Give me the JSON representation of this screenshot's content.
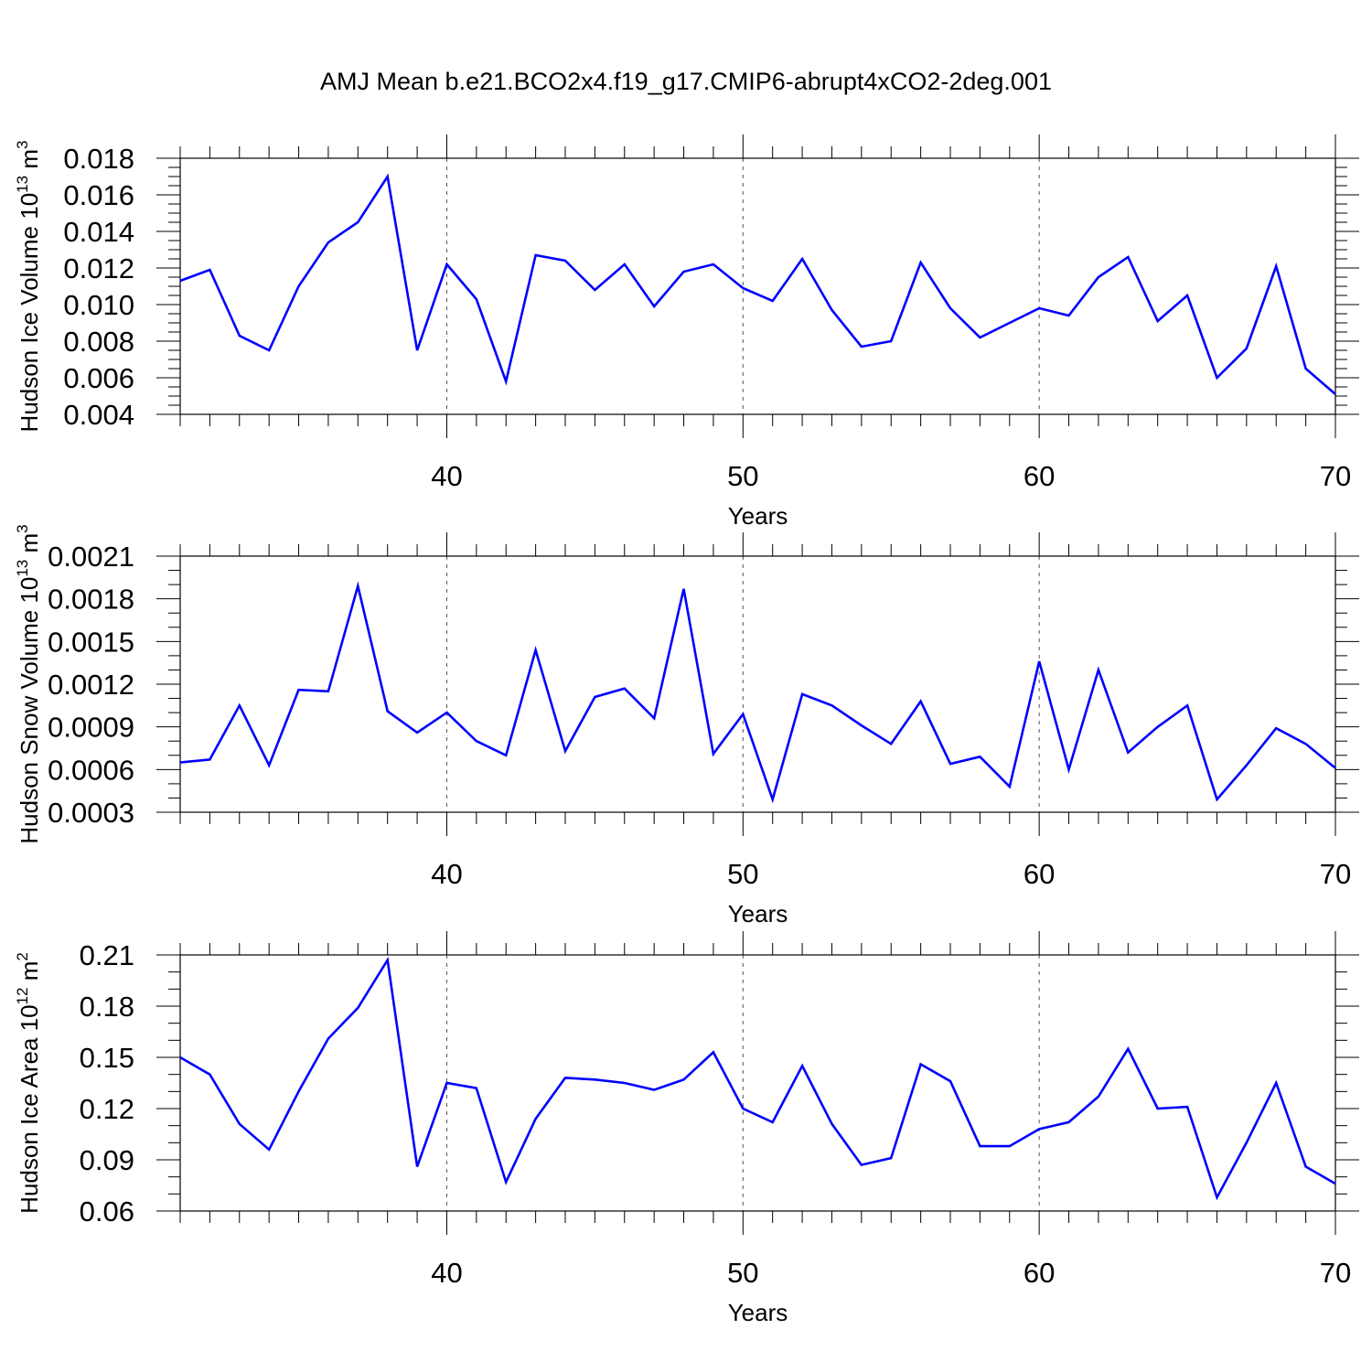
{
  "title": "AMJ Mean b.e21.BCO2x4.f19_g17.CMIP6-abrupt4xCO2-2deg.001",
  "line_color": "#0000ff",
  "chart_data": [
    {
      "type": "line",
      "xlabel": "Years",
      "ylabel_text": "Hudson Ice Volume 10",
      "ylabel_exp": "13",
      "ylabel_unit": " m",
      "ylabel_unit_exp": "3",
      "xlim": [
        31,
        70
      ],
      "ylim": [
        0.004,
        0.018
      ],
      "xticks": [
        40,
        50,
        60,
        70
      ],
      "yticks": [
        0.004,
        0.006,
        0.008,
        0.01,
        0.012,
        0.014,
        0.016,
        0.018
      ],
      "ytick_labels": [
        "0.004",
        "0.006",
        "0.008",
        "0.010",
        "0.012",
        "0.014",
        "0.016",
        "0.018"
      ],
      "ytick_minor_step": 0.0005,
      "vgrid": [
        40,
        50,
        60
      ],
      "x": [
        31,
        32,
        33,
        34,
        35,
        36,
        37,
        38,
        39,
        40,
        41,
        42,
        43,
        44,
        45,
        46,
        47,
        48,
        49,
        50,
        51,
        52,
        53,
        54,
        55,
        56,
        57,
        58,
        59,
        60,
        61,
        62,
        63,
        64,
        65,
        66,
        67,
        68,
        69,
        70
      ],
      "y": [
        0.0113,
        0.0119,
        0.0083,
        0.0075,
        0.011,
        0.0134,
        0.0145,
        0.017,
        0.0075,
        0.0122,
        0.0103,
        0.0058,
        0.0127,
        0.0124,
        0.0108,
        0.0122,
        0.0099,
        0.0118,
        0.0122,
        0.0109,
        0.0102,
        0.0125,
        0.0097,
        0.0077,
        0.008,
        0.0123,
        0.0098,
        0.0082,
        0.009,
        0.0098,
        0.0094,
        0.0115,
        0.0126,
        0.0091,
        0.0105,
        0.006,
        0.0076,
        0.0121,
        0.0065,
        0.0051
      ]
    },
    {
      "type": "line",
      "xlabel": "Years",
      "ylabel_text": "Hudson Snow Volume 10",
      "ylabel_exp": "13",
      "ylabel_unit": " m",
      "ylabel_unit_exp": "3",
      "xlim": [
        31,
        70
      ],
      "ylim": [
        0.0003,
        0.0021
      ],
      "xticks": [
        40,
        50,
        60,
        70
      ],
      "yticks": [
        0.0003,
        0.0006,
        0.0009,
        0.0012,
        0.0015,
        0.0018,
        0.0021
      ],
      "ytick_labels": [
        "0.0003",
        "0.0006",
        "0.0009",
        "0.0012",
        "0.0015",
        "0.0018",
        "0.0021"
      ],
      "ytick_minor_step": 0.0001,
      "vgrid": [
        40,
        50,
        60
      ],
      "x": [
        31,
        32,
        33,
        34,
        35,
        36,
        37,
        38,
        39,
        40,
        41,
        42,
        43,
        44,
        45,
        46,
        47,
        48,
        49,
        50,
        51,
        52,
        53,
        54,
        55,
        56,
        57,
        58,
        59,
        60,
        61,
        62,
        63,
        64,
        65,
        66,
        67,
        68,
        69,
        70
      ],
      "y": [
        0.00065,
        0.00067,
        0.00105,
        0.00063,
        0.00116,
        0.00115,
        0.00189,
        0.00101,
        0.00086,
        0.001,
        0.0008,
        0.0007,
        0.00144,
        0.00073,
        0.00111,
        0.00117,
        0.00096,
        0.00187,
        0.00071,
        0.00099,
        0.00039,
        0.00113,
        0.00105,
        0.00091,
        0.00078,
        0.00108,
        0.00064,
        0.00069,
        0.00048,
        0.00136,
        0.0006,
        0.0013,
        0.00072,
        0.0009,
        0.00105,
        0.00039,
        0.00063,
        0.00089,
        0.00078,
        0.00061
      ]
    },
    {
      "type": "line",
      "xlabel": "Years",
      "ylabel_text": "Hudson Ice Area 10",
      "ylabel_exp": "12",
      "ylabel_unit": " m",
      "ylabel_unit_exp": "2",
      "xlim": [
        31,
        70
      ],
      "ylim": [
        0.06,
        0.21
      ],
      "xticks": [
        40,
        50,
        60,
        70
      ],
      "yticks": [
        0.06,
        0.09,
        0.12,
        0.15,
        0.18,
        0.21
      ],
      "ytick_labels": [
        "0.06",
        "0.09",
        "0.12",
        "0.15",
        "0.18",
        "0.21"
      ],
      "ytick_minor_step": 0.01,
      "vgrid": [
        40,
        50,
        60
      ],
      "x": [
        31,
        32,
        33,
        34,
        35,
        36,
        37,
        38,
        39,
        40,
        41,
        42,
        43,
        44,
        45,
        46,
        47,
        48,
        49,
        50,
        51,
        52,
        53,
        54,
        55,
        56,
        57,
        58,
        59,
        60,
        61,
        62,
        63,
        64,
        65,
        66,
        67,
        68,
        69,
        70
      ],
      "y": [
        0.15,
        0.14,
        0.111,
        0.096,
        0.13,
        0.161,
        0.179,
        0.207,
        0.086,
        0.135,
        0.132,
        0.077,
        0.114,
        0.138,
        0.137,
        0.135,
        0.131,
        0.137,
        0.153,
        0.12,
        0.112,
        0.145,
        0.111,
        0.087,
        0.091,
        0.146,
        0.136,
        0.098,
        0.098,
        0.108,
        0.112,
        0.127,
        0.155,
        0.12,
        0.121,
        0.068,
        0.1,
        0.135,
        0.086,
        0.076
      ]
    }
  ]
}
